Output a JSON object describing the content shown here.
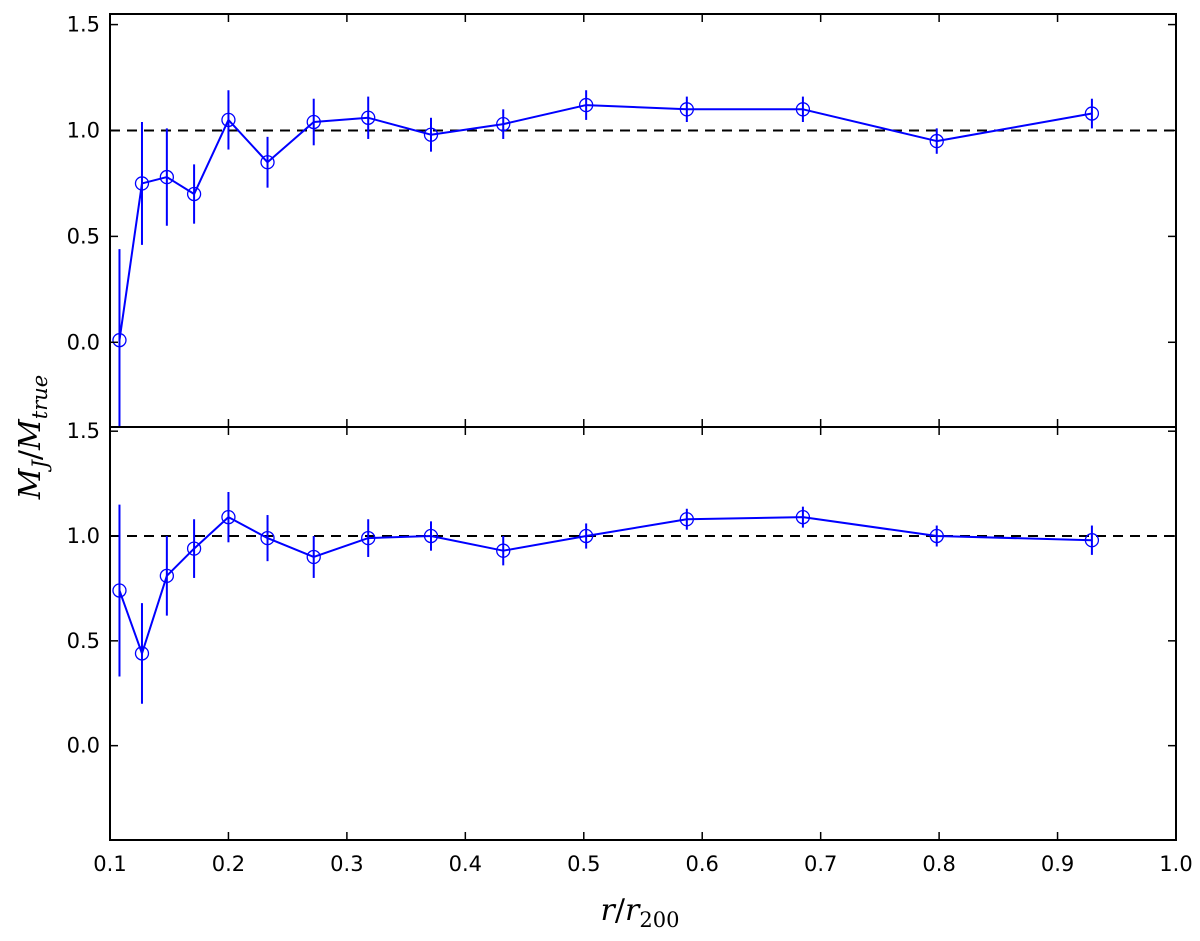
{
  "chart_data": [
    {
      "type": "line",
      "panel": "top",
      "x": [
        0.108,
        0.127,
        0.148,
        0.171,
        0.2,
        0.233,
        0.272,
        0.318,
        0.371,
        0.432,
        0.502,
        0.587,
        0.685,
        0.798,
        0.929
      ],
      "series": [
        {
          "y": [
            0.01,
            0.75,
            0.78,
            0.7,
            1.05,
            0.85,
            1.04,
            1.06,
            0.98,
            1.03,
            1.12,
            1.1,
            1.1,
            0.95,
            1.08
          ],
          "yerr": [
            0.43,
            0.29,
            0.23,
            0.14,
            0.14,
            0.12,
            0.11,
            0.1,
            0.08,
            0.07,
            0.07,
            0.06,
            0.06,
            0.06,
            0.07
          ],
          "color": "#0000ff",
          "marker": "open-circle"
        }
      ],
      "reference_line": {
        "y": 1.0,
        "style": "dashed",
        "color": "#000000"
      },
      "xlim": [
        0.1,
        1.0
      ],
      "ylim": [
        -0.4,
        1.55
      ],
      "yticks": [
        0.0,
        0.5,
        1.0,
        1.5
      ],
      "ytick_labels": [
        "0.0",
        "0.5",
        "1.0",
        "1.5"
      ],
      "grid": false
    },
    {
      "type": "line",
      "panel": "bottom",
      "x": [
        0.108,
        0.127,
        0.148,
        0.171,
        0.2,
        0.233,
        0.272,
        0.318,
        0.371,
        0.432,
        0.502,
        0.587,
        0.685,
        0.798,
        0.929
      ],
      "series": [
        {
          "y": [
            0.74,
            0.44,
            0.81,
            0.94,
            1.09,
            0.99,
            0.9,
            0.99,
            1.0,
            0.93,
            1.0,
            1.08,
            1.09,
            1.0,
            0.98
          ],
          "yerr": [
            0.41,
            0.24,
            0.19,
            0.14,
            0.12,
            0.11,
            0.1,
            0.09,
            0.07,
            0.07,
            0.06,
            0.05,
            0.05,
            0.05,
            0.07
          ],
          "color": "#0000ff",
          "marker": "open-circle"
        }
      ],
      "reference_line": {
        "y": 1.0,
        "style": "dashed",
        "color": "#000000"
      },
      "xlim": [
        0.1,
        1.0
      ],
      "ylim": [
        -0.45,
        1.52
      ],
      "xticks": [
        0.1,
        0.2,
        0.3,
        0.4,
        0.5,
        0.6,
        0.7,
        0.8,
        0.9,
        1.0
      ],
      "xtick_labels": [
        "0.1",
        "0.2",
        "0.3",
        "0.4",
        "0.5",
        "0.6",
        "0.7",
        "0.8",
        "0.9",
        "1.0"
      ],
      "yticks": [
        0.0,
        0.5,
        1.0,
        1.5
      ],
      "ytick_labels": [
        "0.0",
        "0.5",
        "1.0",
        "1.5"
      ],
      "grid": false
    }
  ],
  "ylabel": {
    "main": "M",
    "sub1": "J",
    "sep": "/",
    "main2": "M",
    "sub2": "true"
  },
  "xlabel": {
    "main": "r",
    "sep": "/",
    "main2": "r",
    "sub": "200"
  }
}
